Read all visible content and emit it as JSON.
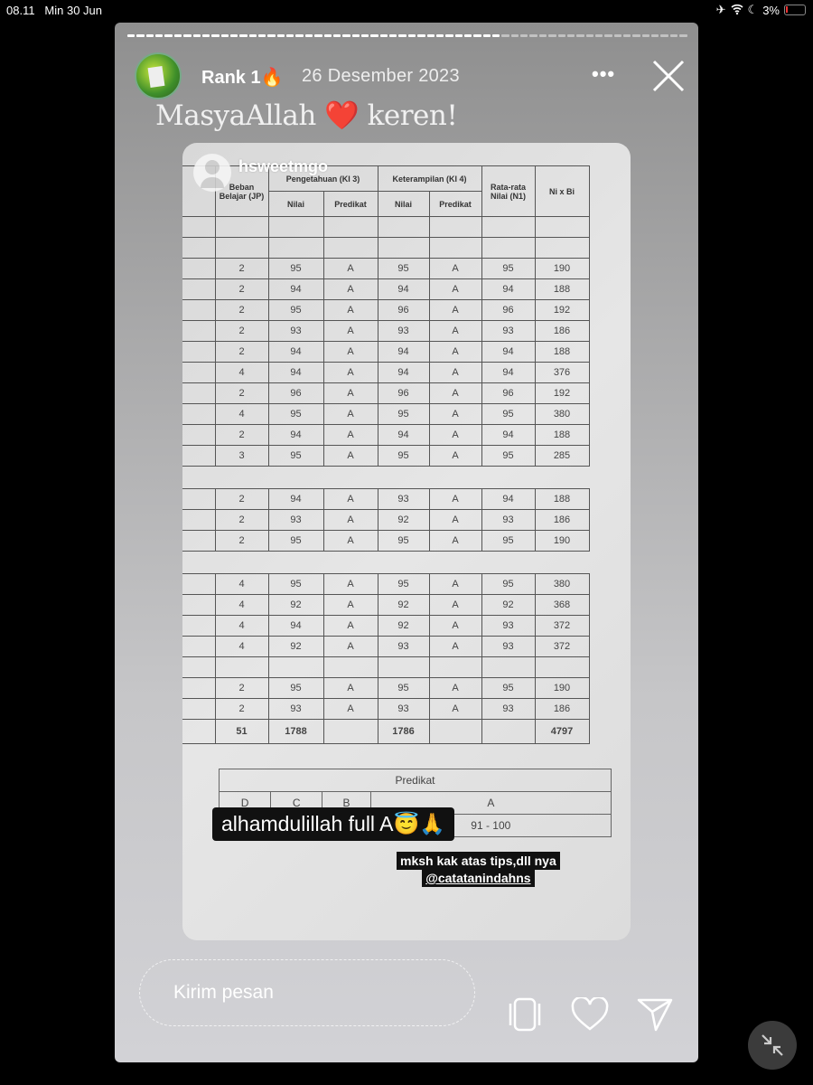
{
  "status_bar": {
    "time": "08.11",
    "date": "Min 30 Jun",
    "battery": "3%",
    "icons": [
      "airplane-icon",
      "wifi-icon",
      "moon-icon",
      "battery-icon"
    ]
  },
  "story": {
    "progress": {
      "segments": 60,
      "viewed": 40
    },
    "username": "Rank 1🔥",
    "date": "26 Desember 2023",
    "more_label": "•••",
    "caption": "MasyaAllah ❤️ keren!",
    "tagged_user": "hsweetmgo",
    "table": {
      "headers": {
        "beban": "Beban Belajar (JP)",
        "pengetahuan": "Pengetahuan (KI 3)",
        "keterampilan": "Keterampilan (KI 4)",
        "nilai": "Nilai",
        "predikat": "Predikat",
        "rata": "Rata-rata Nilai (N1)",
        "nixbi": "Ni x Bi"
      },
      "rows": [
        null,
        null,
        [
          "2",
          "95",
          "A",
          "95",
          "A",
          "95",
          "190"
        ],
        [
          "2",
          "94",
          "A",
          "94",
          "A",
          "94",
          "188"
        ],
        [
          "2",
          "95",
          "A",
          "96",
          "A",
          "96",
          "192"
        ],
        [
          "2",
          "93",
          "A",
          "93",
          "A",
          "93",
          "186"
        ],
        [
          "2",
          "94",
          "A",
          "94",
          "A",
          "94",
          "188"
        ],
        [
          "4",
          "94",
          "A",
          "94",
          "A",
          "94",
          "376"
        ],
        [
          "2",
          "96",
          "A",
          "96",
          "A",
          "96",
          "192"
        ],
        [
          "4",
          "95",
          "A",
          "95",
          "A",
          "95",
          "380"
        ],
        [
          "2",
          "94",
          "A",
          "94",
          "A",
          "94",
          "188"
        ],
        [
          "3",
          "95",
          "A",
          "95",
          "A",
          "95",
          "285"
        ],
        "gap",
        [
          "2",
          "94",
          "A",
          "93",
          "A",
          "94",
          "188"
        ],
        [
          "2",
          "93",
          "A",
          "92",
          "A",
          "93",
          "186"
        ],
        [
          "2",
          "95",
          "A",
          "95",
          "A",
          "95",
          "190"
        ],
        "gap",
        [
          "4",
          "95",
          "A",
          "95",
          "A",
          "95",
          "380"
        ],
        [
          "4",
          "92",
          "A",
          "92",
          "A",
          "92",
          "368"
        ],
        [
          "4",
          "94",
          "A",
          "92",
          "A",
          "93",
          "372"
        ],
        [
          "4",
          "92",
          "A",
          "93",
          "A",
          "93",
          "372"
        ],
        null,
        [
          "2",
          "95",
          "A",
          "95",
          "A",
          "95",
          "190"
        ],
        [
          "2",
          "93",
          "A",
          "93",
          "A",
          "93",
          "186"
        ]
      ],
      "total": [
        "51",
        "1788",
        "",
        "1786",
        "",
        "",
        "4797"
      ]
    },
    "predikat_table": {
      "title": "Predikat",
      "grades": [
        "D",
        "C",
        "B",
        "A"
      ],
      "ranges": [
        "",
        "",
        "",
        "91 - 100"
      ]
    },
    "sticker_text": "alhamdulillah full A😇🙏",
    "thanks_text": "mksh kak atas tips,dll nya",
    "mention": "@catatanindahns"
  },
  "footer": {
    "message_placeholder": "Kirim pesan"
  }
}
